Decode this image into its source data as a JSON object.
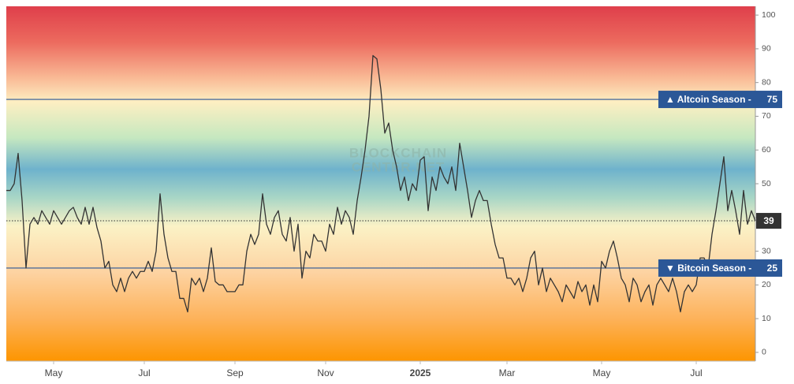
{
  "chart_data": {
    "type": "line",
    "categories": [
      null,
      null,
      null,
      null,
      null,
      null,
      null,
      null,
      null,
      null,
      null,
      null,
      "May",
      null,
      null,
      null,
      null,
      null,
      null,
      null,
      null,
      null,
      null,
      null,
      null,
      null,
      null,
      null,
      null,
      null,
      null,
      null,
      null,
      null,
      null,
      "Jul",
      null,
      null,
      null,
      null,
      null,
      null,
      null,
      null,
      null,
      null,
      null,
      null,
      null,
      null,
      null,
      null,
      null,
      null,
      null,
      null,
      null,
      null,
      "Sep",
      null,
      null,
      null,
      null,
      null,
      null,
      null,
      null,
      null,
      null,
      null,
      null,
      null,
      null,
      null,
      null,
      null,
      null,
      null,
      null,
      null,
      null,
      "Nov",
      null,
      null,
      null,
      null,
      null,
      null,
      null,
      null,
      null,
      null,
      null,
      null,
      null,
      null,
      null,
      null,
      null,
      null,
      null,
      null,
      null,
      null,
      null,
      "2025",
      null,
      null,
      null,
      null,
      null,
      null,
      null,
      null,
      null,
      null,
      null,
      null,
      null,
      null,
      null,
      null,
      null,
      null,
      null,
      null,
      null,
      "Mar",
      null,
      null,
      null,
      null,
      null,
      null,
      null,
      null,
      null,
      null,
      null,
      null,
      null,
      null,
      null,
      null,
      null,
      null,
      null,
      null,
      null,
      null,
      null,
      "May",
      null,
      null,
      null,
      null,
      null,
      null,
      null,
      null,
      null,
      null,
      null,
      null,
      null,
      null,
      null,
      null,
      null,
      null,
      null,
      null,
      null,
      null,
      null,
      "Jul",
      null,
      null,
      null,
      null,
      null,
      null,
      null,
      null,
      null,
      null,
      null,
      null,
      null,
      null,
      null
    ],
    "values": [
      48,
      48,
      50,
      59,
      45,
      25,
      38,
      40,
      38,
      42,
      40,
      38,
      42,
      40,
      38,
      40,
      42,
      43,
      40,
      38,
      43,
      38,
      43,
      37,
      33,
      25,
      27,
      20,
      18,
      22,
      18,
      22,
      24,
      22,
      24,
      24,
      27,
      24,
      30,
      47,
      35,
      28,
      24,
      24,
      16,
      16,
      12,
      22,
      20,
      22,
      18,
      22,
      31,
      21,
      20,
      20,
      18,
      18,
      18,
      20,
      20,
      30,
      35,
      32,
      35,
      47,
      38,
      35,
      40,
      42,
      35,
      33,
      40,
      30,
      38,
      22,
      30,
      28,
      35,
      33,
      33,
      30,
      38,
      35,
      43,
      38,
      42,
      40,
      35,
      45,
      52,
      60,
      70,
      88,
      87,
      78,
      65,
      68,
      60,
      55,
      48,
      52,
      45,
      50,
      48,
      57,
      58,
      42,
      52,
      48,
      55,
      52,
      50,
      55,
      48,
      62,
      55,
      48,
      40,
      45,
      48,
      45,
      45,
      38,
      32,
      28,
      28,
      22,
      22,
      20,
      22,
      18,
      22,
      28,
      30,
      20,
      25,
      18,
      22,
      20,
      18,
      15,
      20,
      18,
      16,
      21,
      18,
      20,
      14,
      20,
      15,
      27,
      25,
      30,
      33,
      28,
      22,
      20,
      15,
      22,
      20,
      15,
      18,
      20,
      14,
      20,
      22,
      20,
      18,
      22,
      18,
      12,
      18,
      20,
      18,
      20,
      28,
      28,
      25,
      35,
      42,
      50,
      58,
      42,
      48,
      42,
      35,
      48,
      38,
      42,
      39
    ],
    "color": "#333333",
    "ylim": [
      -2.6,
      102.6
    ],
    "yticks": [
      0,
      10,
      20,
      30,
      40,
      50,
      60,
      70,
      80,
      90,
      100
    ],
    "thresholds": [
      {
        "label": "▲ Altcoin Season -",
        "value": 75,
        "color": "#2b5797"
      },
      {
        "label": "▼ Bitcoin Season -",
        "value": 25,
        "color": "#2b5797"
      }
    ],
    "current_value": 39,
    "watermark": [
      "BLOCKCHAIN",
      "CENTER.NET"
    ]
  }
}
